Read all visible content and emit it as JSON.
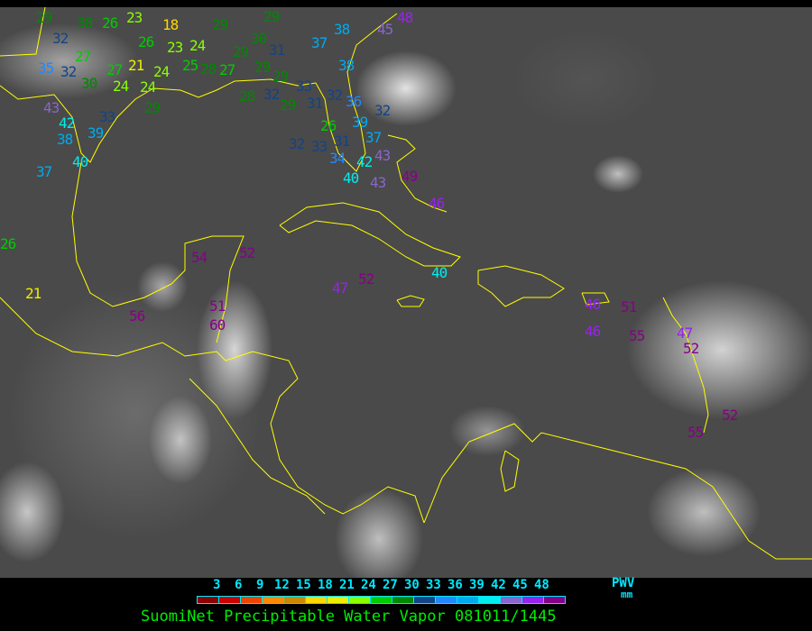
{
  "legend": {
    "ticks": [
      "3",
      "6",
      "9",
      "12",
      "15",
      "18",
      "21",
      "24",
      "27",
      "30",
      "33",
      "36",
      "39",
      "42",
      "45",
      "48"
    ],
    "colors": [
      "#8b0000",
      "#cc0000",
      "#ee4400",
      "#ff8800",
      "#cc8800",
      "#ffd700",
      "#eeee00",
      "#88ff00",
      "#00cc00",
      "#008800",
      "#114488",
      "#2288ff",
      "#00aaee",
      "#00eeee",
      "#8866cc",
      "#9922ee",
      "#880088"
    ],
    "unit": "PWV",
    "unit_sub": "mm"
  },
  "caption": "SuomiNet Precipitable Water Vapor 081011/1445",
  "coastline_color": "#ffff00",
  "stations": [
    "29",
    "30",
    "26",
    "23",
    "26",
    "18",
    "23",
    "32",
    "27",
    "35",
    "32",
    "30",
    "27",
    "21",
    "24",
    "24",
    "24",
    "29",
    "25",
    "24",
    "28",
    "29",
    "27",
    "29",
    "30",
    "29",
    "31",
    "29",
    "29",
    "28",
    "32",
    "29",
    "33",
    "31",
    "32",
    "36",
    "38",
    "38",
    "37",
    "45",
    "48",
    "43",
    "42",
    "33",
    "39",
    "38",
    "40",
    "37",
    "26",
    "31",
    "39",
    "37",
    "42",
    "34",
    "40",
    "43",
    "43",
    "33",
    "32",
    "32",
    "49",
    "46",
    "40",
    "52",
    "47",
    "26",
    "21",
    "54",
    "52",
    "56",
    "51",
    "60",
    "46",
    "46",
    "51",
    "55",
    "47",
    "52",
    "52",
    "55"
  ]
}
